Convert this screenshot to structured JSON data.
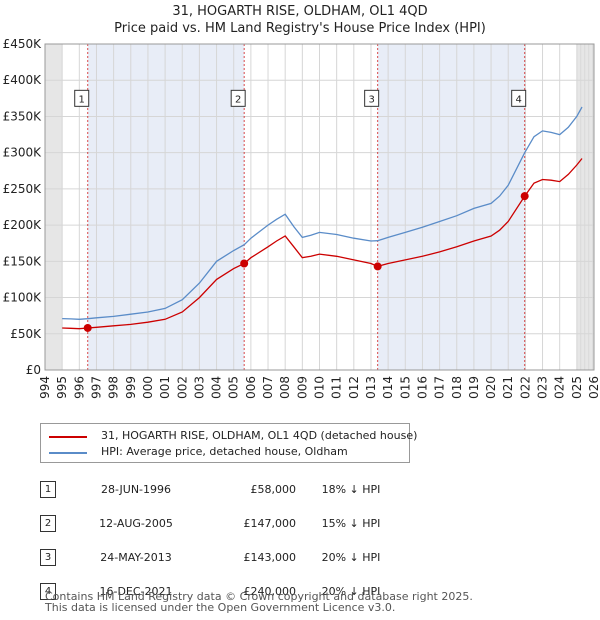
{
  "header": {
    "title": "31, HOGARTH RISE, OLDHAM, OL1 4QD",
    "subtitle": "Price paid vs. HM Land Registry's House Price Index (HPI)"
  },
  "chart_data": {
    "type": "line",
    "title": "31, HOGARTH RISE, OLDHAM, OL1 4QD",
    "subtitle": "Price paid vs. HM Land Registry's House Price Index (HPI)",
    "xlabel": "",
    "ylabel": "",
    "xlim": [
      1994,
      2026
    ],
    "ylim": [
      0,
      450000
    ],
    "x_ticks": [
      1994,
      1995,
      1996,
      1997,
      1998,
      1999,
      2000,
      2001,
      2002,
      2003,
      2004,
      2005,
      2006,
      2007,
      2008,
      2009,
      2010,
      2011,
      2012,
      2013,
      2014,
      2015,
      2016,
      2017,
      2018,
      2019,
      2020,
      2021,
      2022,
      2023,
      2024,
      2025,
      2026
    ],
    "y_ticks": [
      0,
      50000,
      100000,
      150000,
      200000,
      250000,
      300000,
      350000,
      400000,
      450000
    ],
    "y_tick_labels": [
      "£0",
      "£50K",
      "£100K",
      "£150K",
      "£200K",
      "£250K",
      "£300K",
      "£350K",
      "£400K",
      "£450K"
    ],
    "grid": true,
    "shaded_ranges": [
      [
        1994,
        1995
      ],
      [
        1996.49,
        2005.61
      ],
      [
        2013.39,
        2021.96
      ],
      [
        2025.0,
        2026
      ]
    ],
    "series": [
      {
        "name": "31, HOGARTH RISE, OLDHAM, OL1 4QD (detached house)",
        "color": "#cc0000",
        "x": [
          1995.0,
          1995.5,
          1996.0,
          1996.49,
          1997.0,
          1998.0,
          1999.0,
          2000.0,
          2001.0,
          2002.0,
          2003.0,
          2004.0,
          2005.0,
          2005.61,
          2006.0,
          2007.0,
          2007.5,
          2008.0,
          2008.5,
          2009.0,
          2009.5,
          2010.0,
          2011.0,
          2012.0,
          2013.0,
          2013.39,
          2014.0,
          2015.0,
          2016.0,
          2017.0,
          2018.0,
          2019.0,
          2020.0,
          2020.5,
          2021.0,
          2021.96,
          2022.5,
          2023.0,
          2023.5,
          2024.0,
          2024.5,
          2025.0,
          2025.3
        ],
        "values": [
          58000,
          57500,
          57000,
          58000,
          59000,
          61000,
          63000,
          66000,
          70000,
          80000,
          100000,
          125000,
          140000,
          147000,
          155000,
          170000,
          178000,
          185000,
          170000,
          155000,
          157000,
          160000,
          157000,
          152000,
          147000,
          143000,
          147000,
          152000,
          157000,
          163000,
          170000,
          178000,
          185000,
          193000,
          205000,
          240000,
          258000,
          263000,
          262000,
          260000,
          270000,
          283000,
          292000
        ]
      },
      {
        "name": "HPI: Average price, detached house, Oldham",
        "color": "#5a8cc8",
        "x": [
          1995.0,
          1995.5,
          1996.0,
          1996.49,
          1997.0,
          1998.0,
          1999.0,
          2000.0,
          2001.0,
          2002.0,
          2003.0,
          2004.0,
          2005.0,
          2005.61,
          2006.0,
          2007.0,
          2007.5,
          2008.0,
          2008.5,
          2009.0,
          2009.5,
          2010.0,
          2011.0,
          2012.0,
          2013.0,
          2013.39,
          2014.0,
          2015.0,
          2016.0,
          2017.0,
          2018.0,
          2019.0,
          2020.0,
          2020.5,
          2021.0,
          2021.96,
          2022.5,
          2023.0,
          2023.5,
          2024.0,
          2024.5,
          2025.0,
          2025.3
        ],
        "values": [
          71000,
          70500,
          70000,
          70800,
          72000,
          74000,
          77000,
          80000,
          85000,
          97000,
          120000,
          150000,
          165000,
          173000,
          182000,
          200000,
          208000,
          215000,
          198000,
          183000,
          186000,
          190000,
          187000,
          182000,
          178000,
          178500,
          183000,
          190000,
          197000,
          205000,
          213000,
          223000,
          230000,
          240000,
          255000,
          300000,
          322000,
          330000,
          328000,
          325000,
          335000,
          350000,
          363000
        ]
      }
    ],
    "sales": [
      {
        "label": "1",
        "x": 1996.49,
        "value": 58000
      },
      {
        "label": "2",
        "x": 2005.61,
        "value": 147000
      },
      {
        "label": "3",
        "x": 2013.39,
        "value": 143000
      },
      {
        "label": "4",
        "x": 2021.96,
        "value": 240000
      }
    ],
    "marker_box_value": 375000
  },
  "legend": {
    "items": [
      {
        "label": "31, HOGARTH RISE, OLDHAM, OL1 4QD (detached house)",
        "color": "#cc0000"
      },
      {
        "label": "HPI: Average price, detached house, Oldham",
        "color": "#5a8cc8"
      }
    ]
  },
  "transactions": [
    {
      "num": "1",
      "date": "28-JUN-1996",
      "price": "£58,000",
      "hpi": "18% ↓ HPI"
    },
    {
      "num": "2",
      "date": "12-AUG-2005",
      "price": "£147,000",
      "hpi": "15% ↓ HPI"
    },
    {
      "num": "3",
      "date": "24-MAY-2013",
      "price": "£143,000",
      "hpi": "20% ↓ HPI"
    },
    {
      "num": "4",
      "date": "16-DEC-2021",
      "price": "£240,000",
      "hpi": "20% ↓ HPI"
    }
  ],
  "footer": {
    "line1": "Contains HM Land Registry data © Crown copyright and database right 2025.",
    "line2": "This data is licensed under the Open Government Licence v3.0."
  }
}
